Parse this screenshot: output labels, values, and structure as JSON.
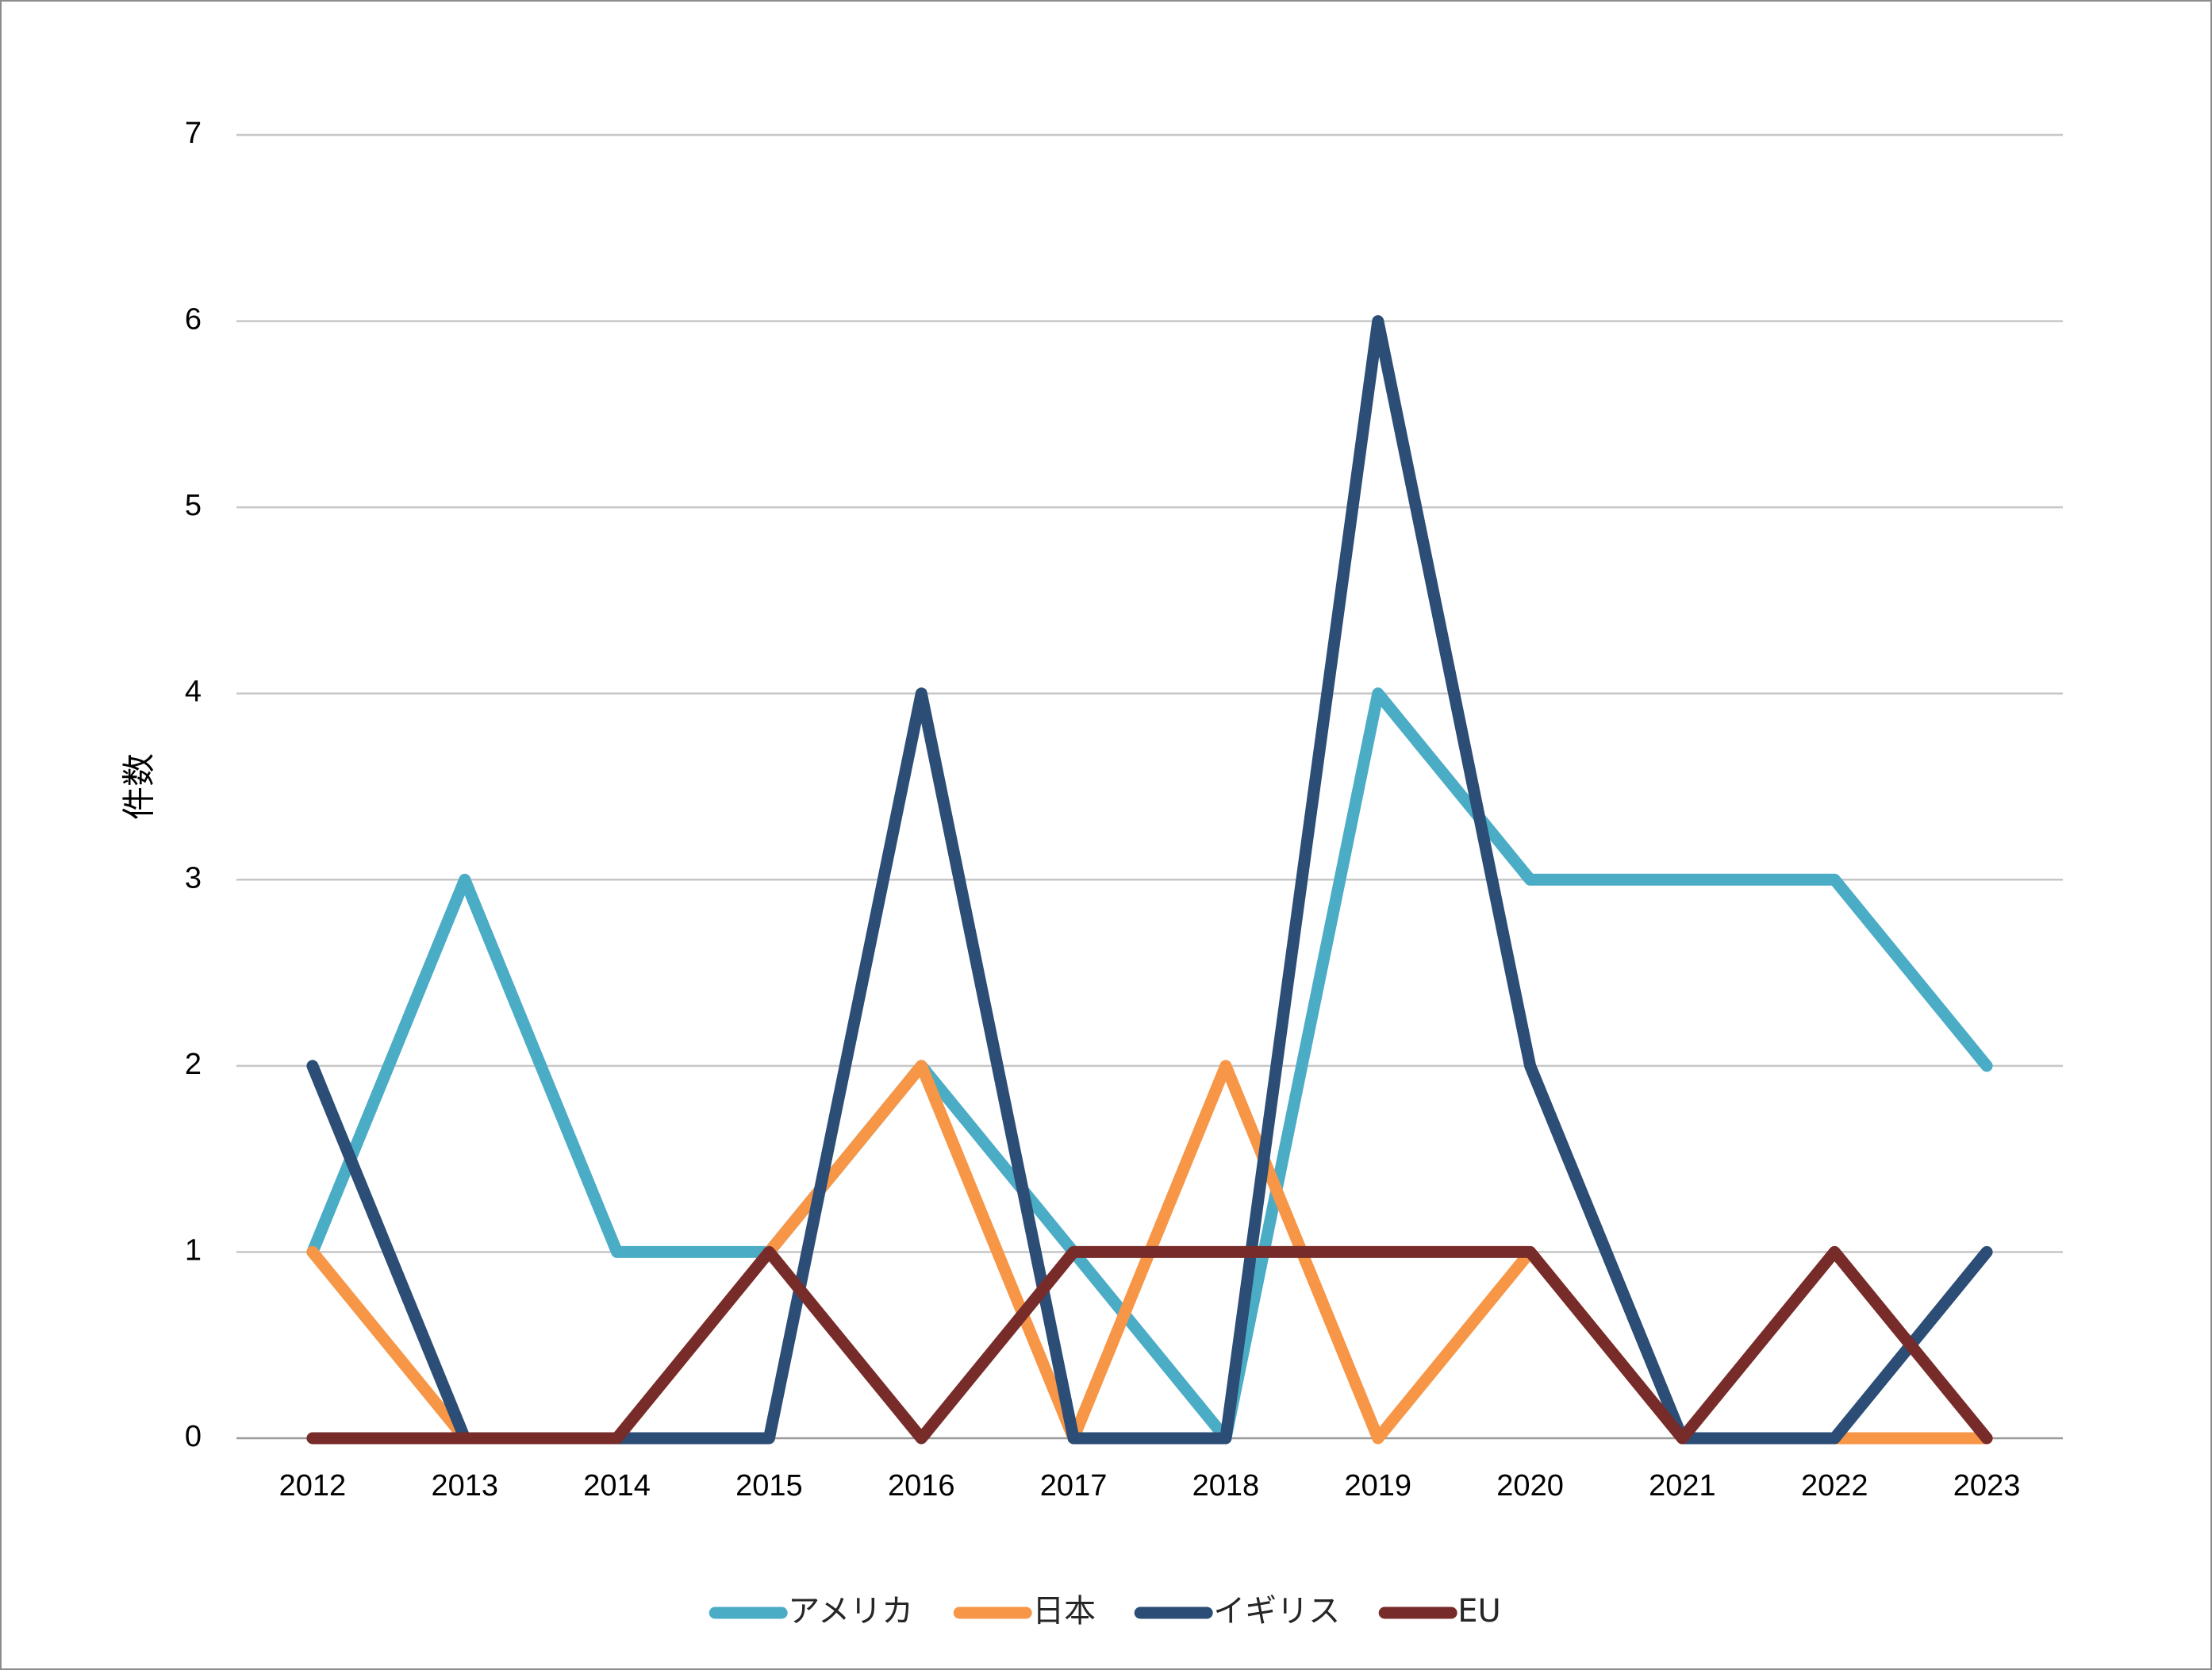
{
  "chart_data": {
    "type": "line",
    "title": "",
    "xlabel": "",
    "ylabel": "件数",
    "categories": [
      "2012",
      "2013",
      "2014",
      "2015",
      "2016",
      "2017",
      "2018",
      "2019",
      "2020",
      "2021",
      "2022",
      "2023"
    ],
    "ylim": [
      0,
      7
    ],
    "yticks": [
      0,
      1,
      2,
      3,
      4,
      5,
      6,
      7
    ],
    "grid": true,
    "legend_position": "bottom",
    "series": [
      {
        "name": "アメリカ",
        "color": "#4BACC6",
        "values": [
          1,
          3,
          1,
          1,
          2,
          1,
          0,
          4,
          3,
          3,
          3,
          2
        ]
      },
      {
        "name": "日本",
        "color": "#F79646",
        "values": [
          1,
          0,
          0,
          1,
          2,
          0,
          2,
          0,
          1,
          0,
          0,
          0
        ]
      },
      {
        "name": "イギリス",
        "color": "#2C4D75",
        "values": [
          2,
          0,
          0,
          0,
          4,
          0,
          0,
          6,
          2,
          0,
          0,
          1
        ]
      },
      {
        "name": "EU",
        "color": "#772C2A",
        "values": [
          0,
          0,
          0,
          1,
          0,
          1,
          1,
          1,
          1,
          0,
          1,
          0
        ]
      }
    ]
  }
}
